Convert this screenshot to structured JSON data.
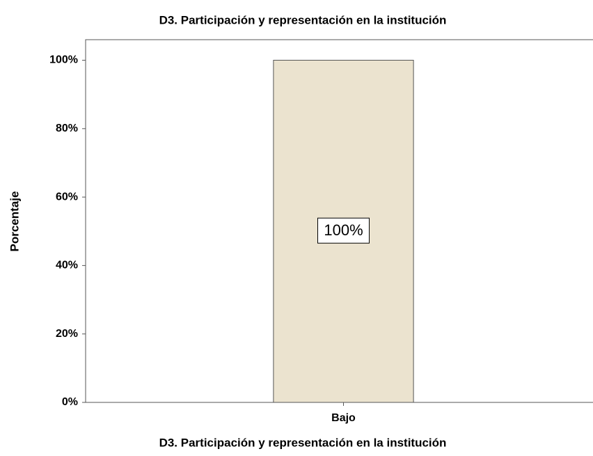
{
  "chart_data": {
    "type": "bar",
    "title": "D3. Participación y representación en la institución",
    "x_label": "D3. Participación y representación en la institución",
    "y_label": "Porcentaje",
    "categories": [
      "Bajo"
    ],
    "values": [
      100
    ],
    "value_labels": [
      "100%"
    ],
    "color": "#ebe3cf",
    "ylim": [
      0,
      106
    ],
    "yticks": [
      {
        "value": 0,
        "label": "0%"
      },
      {
        "value": 20,
        "label": "20%"
      },
      {
        "value": 40,
        "label": "40%"
      },
      {
        "value": 60,
        "label": "60%"
      },
      {
        "value": 80,
        "label": "80%"
      },
      {
        "value": 100,
        "label": "100%"
      }
    ],
    "grid": false
  }
}
